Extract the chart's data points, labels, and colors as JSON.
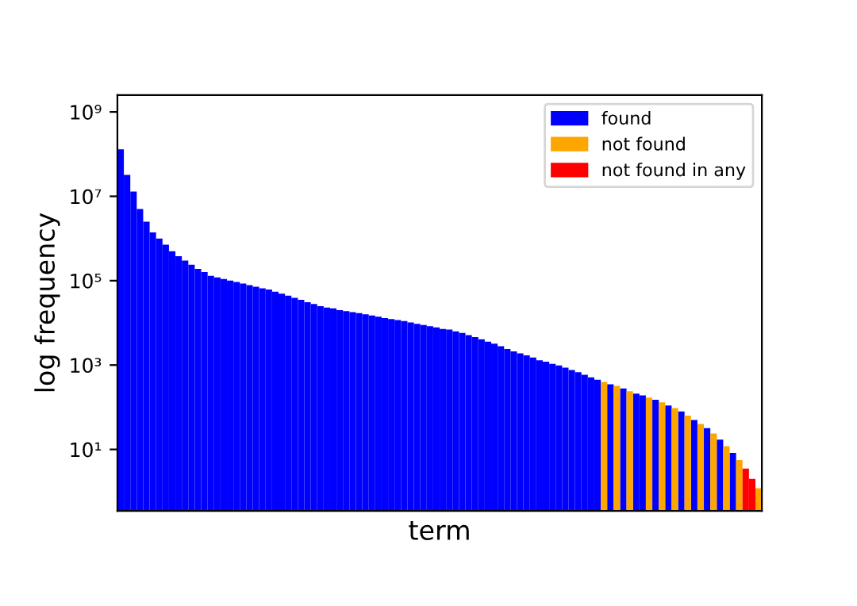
{
  "chart_data": {
    "type": "bar",
    "xlabel": "term",
    "ylabel": "log frequency",
    "log": "y",
    "ylim": [
      0.35,
      2500000000
    ],
    "yticks": [
      {
        "value": 10,
        "label": "10¹"
      },
      {
        "value": 1000,
        "label": "10³"
      },
      {
        "value": 100000,
        "label": "10⁵"
      },
      {
        "value": 10000000,
        "label": "10⁷"
      },
      {
        "value": 1000000000,
        "label": "10⁹"
      }
    ],
    "tick_labels": "y",
    "legend": "top right",
    "grid": false,
    "categories": [
      null,
      null,
      null,
      null,
      null,
      null,
      null,
      null,
      null,
      null,
      null,
      null,
      null,
      null,
      null,
      null,
      null,
      null,
      null,
      null,
      null,
      null,
      null,
      null,
      null,
      null,
      null,
      null,
      null,
      null,
      null,
      null,
      null,
      null,
      null,
      null,
      null,
      null,
      null,
      null,
      null,
      null,
      null,
      null,
      null,
      null,
      null,
      null,
      null,
      null,
      null,
      null,
      null,
      null,
      null,
      null,
      null,
      null,
      null,
      null,
      null,
      null,
      null,
      null,
      null,
      null,
      null,
      null,
      null,
      null,
      null,
      null,
      null,
      null,
      null,
      null,
      null,
      null,
      null,
      null,
      null,
      null,
      null,
      null,
      null,
      null,
      null,
      null,
      null,
      null,
      null,
      null,
      null,
      null,
      null,
      null,
      null,
      null,
      null,
      null
    ],
    "series": [
      {
        "name": "found",
        "color": "#0000ff",
        "values": [
          130000000,
          32000000,
          13000000,
          5000000,
          2500000,
          1400000,
          1000000,
          710000,
          500000,
          380000,
          300000,
          240000,
          190000,
          160000,
          130000,
          120000,
          110000,
          100000,
          93000,
          85000,
          78000,
          72000,
          66000,
          62000,
          55000,
          49000,
          44000,
          39000,
          35000,
          31000,
          28000,
          25000,
          23000,
          22000,
          20000,
          19000,
          18000,
          17000,
          16000,
          15000,
          14000,
          13000,
          12300,
          11700,
          11000,
          10200,
          9500,
          8900,
          8300,
          7800,
          7200,
          6900,
          6300,
          5800,
          5100,
          4600,
          4100,
          3600,
          3200,
          2800,
          2400,
          2100,
          1900,
          1700,
          1500,
          1300,
          1200,
          1070,
          980,
          870,
          760,
          680,
          590,
          510,
          450,
          null,
          350,
          null,
          280,
          null,
          210,
          190,
          null,
          150,
          null,
          110,
          null,
          79,
          null,
          50,
          null,
          32,
          null,
          17,
          null,
          8.3,
          null,
          null,
          null,
          null
        ]
      },
      {
        "name": "not found",
        "color": "#ffa500",
        "values": [
          null,
          null,
          null,
          null,
          null,
          null,
          null,
          null,
          null,
          null,
          null,
          null,
          null,
          null,
          null,
          null,
          null,
          null,
          null,
          null,
          null,
          null,
          null,
          null,
          null,
          null,
          null,
          null,
          null,
          null,
          null,
          null,
          null,
          null,
          null,
          null,
          null,
          null,
          null,
          null,
          null,
          null,
          null,
          null,
          null,
          null,
          null,
          null,
          null,
          null,
          null,
          null,
          null,
          null,
          null,
          null,
          null,
          null,
          null,
          null,
          null,
          null,
          null,
          null,
          null,
          null,
          null,
          null,
          null,
          null,
          null,
          null,
          null,
          null,
          null,
          400,
          null,
          320,
          null,
          240,
          null,
          null,
          170,
          null,
          130,
          null,
          95,
          null,
          63,
          null,
          40,
          null,
          24,
          null,
          12,
          null,
          5.6,
          null,
          null,
          1.2
        ]
      },
      {
        "name": "not found in any",
        "color": "#ff0000",
        "values": [
          null,
          null,
          null,
          null,
          null,
          null,
          null,
          null,
          null,
          null,
          null,
          null,
          null,
          null,
          null,
          null,
          null,
          null,
          null,
          null,
          null,
          null,
          null,
          null,
          null,
          null,
          null,
          null,
          null,
          null,
          null,
          null,
          null,
          null,
          null,
          null,
          null,
          null,
          null,
          null,
          null,
          null,
          null,
          null,
          null,
          null,
          null,
          null,
          null,
          null,
          null,
          null,
          null,
          null,
          null,
          null,
          null,
          null,
          null,
          null,
          null,
          null,
          null,
          null,
          null,
          null,
          null,
          null,
          null,
          null,
          null,
          null,
          null,
          null,
          null,
          null,
          null,
          null,
          null,
          null,
          null,
          null,
          null,
          null,
          null,
          null,
          null,
          null,
          null,
          null,
          null,
          null,
          null,
          null,
          null,
          null,
          null,
          3.5,
          2,
          null
        ]
      }
    ]
  }
}
